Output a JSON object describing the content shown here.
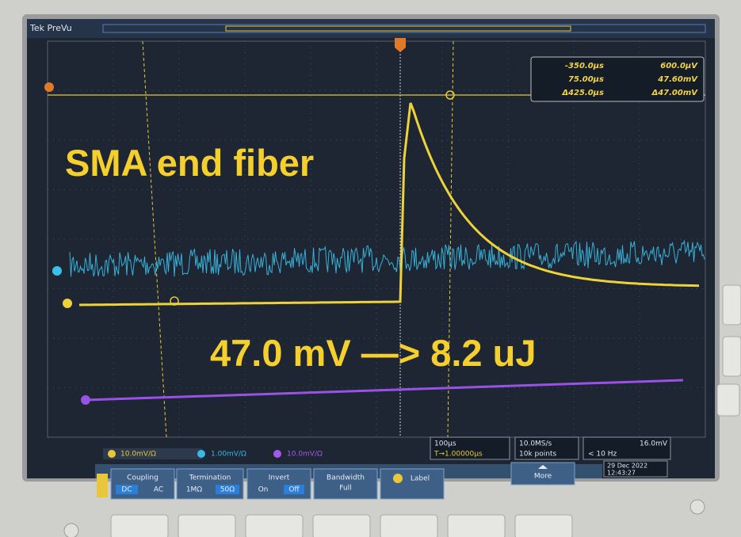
{
  "header": {
    "mode": "Tek PreVu"
  },
  "cursor_readout": {
    "rows": [
      [
        "-350.0µs",
        "600.0µV"
      ],
      [
        "75.00µs",
        "47.60mV"
      ],
      [
        "Δ425.0µs",
        "Δ47.00mV"
      ]
    ]
  },
  "annotations": {
    "title": "SMA end fiber",
    "conversion": "47.0 mV —> 8.2 uJ"
  },
  "status_bar": {
    "channels": [
      "10.0mV/Ω",
      "1.00mV/Ω",
      "10.0mV/Ω"
    ],
    "timebase": "100µs",
    "trigger_position": "T→1.00000µs",
    "sample_rate": "10.0MS/s",
    "record_length": "10k points",
    "trigger_level": "16.0mV",
    "trigger_freq": "< 10 Hz",
    "date": "29 Dec 2022",
    "time": "12:43:27"
  },
  "menu": {
    "coupling": {
      "label": "Coupling",
      "options": [
        "DC",
        "AC"
      ]
    },
    "termination": {
      "label": "Termination",
      "options": [
        "1MΩ",
        "50Ω"
      ]
    },
    "invert": {
      "label": "Invert",
      "options": [
        "On",
        "Off"
      ]
    },
    "bandwidth": {
      "label": "Bandwidth",
      "value": "Full"
    },
    "label": "Label",
    "more": "More"
  }
}
